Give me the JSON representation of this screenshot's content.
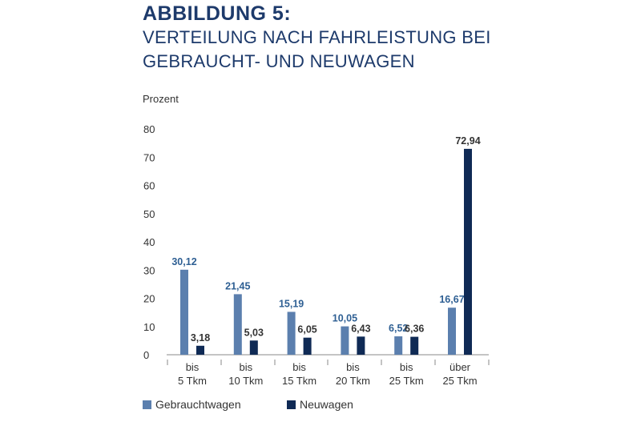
{
  "header": {
    "figure_label": "ABBILDUNG 5:",
    "title_line1": "VERTEILUNG NACH FAHRLEISTUNG BEI",
    "title_line2": "GEBRAUCHT- UND NEUWAGEN"
  },
  "chart_data": {
    "type": "bar",
    "title": "VERTEILUNG NACH FAHRLEISTUNG BEI GEBRAUCHT- UND NEUWAGEN",
    "ylabel": "Prozent",
    "ylim": [
      0,
      80
    ],
    "yticks": [
      0,
      10,
      20,
      30,
      40,
      50,
      60,
      70,
      80
    ],
    "grid": false,
    "legend_position": "bottom-left",
    "categories": [
      [
        "bis",
        "5 Tkm"
      ],
      [
        "bis",
        "10 Tkm"
      ],
      [
        "bis",
        "15 Tkm"
      ],
      [
        "bis",
        "20 Tkm"
      ],
      [
        "bis",
        "25 Tkm"
      ],
      [
        "über",
        "25 Tkm"
      ]
    ],
    "series": [
      {
        "name": "Gebrauchtwagen",
        "color": "#5b7fae",
        "label_color": "#2e5f93",
        "values": [
          30.12,
          21.45,
          15.19,
          10.05,
          6.52,
          16.67
        ],
        "labels": [
          "30,12",
          "21,45",
          "15,19",
          "10,05",
          "6,52",
          "16,67"
        ]
      },
      {
        "name": "Neuwagen",
        "color": "#0f2a55",
        "label_color": "#333333",
        "values": [
          3.18,
          5.03,
          6.05,
          6.43,
          6.36,
          72.94
        ],
        "labels": [
          "3,18",
          "5,03",
          "6,05",
          "6,43",
          "6,36",
          "72,94"
        ]
      }
    ]
  }
}
